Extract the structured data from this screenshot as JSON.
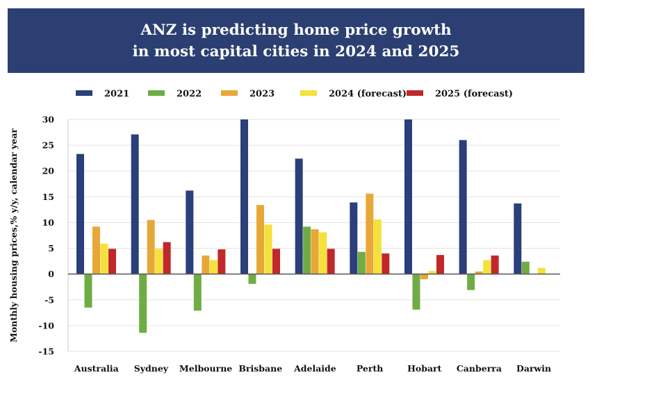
{
  "title": {
    "line1": "ANZ is predicting home price growth",
    "line2": "in most capital cities in 2024 and 2025"
  },
  "chart_data": {
    "type": "bar",
    "title": "ANZ is predicting home price growth in most capital cities in 2024 and 2025",
    "ylabel": "Monthly housing prices,% y/y, calendar year",
    "xlabel": "",
    "ylim": [
      -15,
      30
    ],
    "yticks": [
      30,
      25,
      20,
      15,
      10,
      5,
      0,
      -5,
      -10,
      -15
    ],
    "ytick_labels": [
      "30",
      "25",
      "20",
      "15",
      "10",
      "5",
      "0",
      "-5",
      "-10",
      "-15"
    ],
    "grid": true,
    "legend_position": "top",
    "categories": [
      "Australia",
      "Sydney",
      "Melbourne",
      "Brisbane",
      "Adelaide",
      "Perth",
      "Hobart",
      "Canberra",
      "Darwin"
    ],
    "series": [
      {
        "name": "2021",
        "color": "#2b3f7a",
        "values": [
          23.3,
          27.1,
          16.2,
          30,
          22.4,
          13.9,
          30,
          26.0,
          13.7
        ]
      },
      {
        "name": "2022",
        "color": "#6fad44",
        "values": [
          -6.5,
          -11.4,
          -7.1,
          -1.9,
          9.2,
          4.3,
          -6.9,
          -3.1,
          2.4
        ]
      },
      {
        "name": "2023",
        "color": "#e8a838",
        "values": [
          9.2,
          10.5,
          3.6,
          13.4,
          8.7,
          15.6,
          -1.0,
          0.5,
          0
        ]
      },
      {
        "name": "2024 (forecast)",
        "color": "#f5e13a",
        "values": [
          5.9,
          4.9,
          2.7,
          9.6,
          8.1,
          10.6,
          0.6,
          2.7,
          1.2
        ]
      },
      {
        "name": "2025 (forecast)",
        "color": "#c0282a",
        "values": [
          4.9,
          6.2,
          4.8,
          4.9,
          4.9,
          4.0,
          3.7,
          3.6,
          0
        ]
      }
    ]
  }
}
